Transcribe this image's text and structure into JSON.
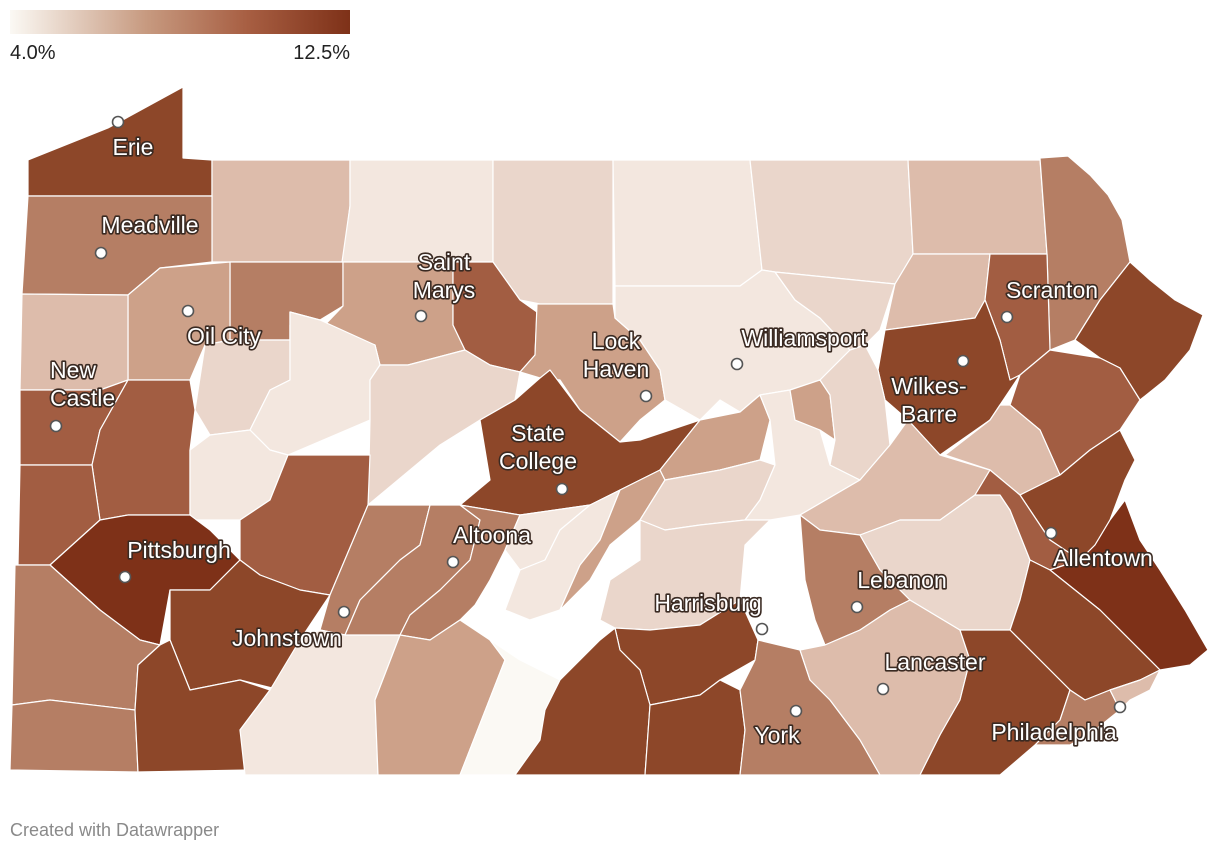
{
  "legend": {
    "min_label": "4.0%",
    "max_label": "12.5%",
    "gradient_colors": [
      "#fbf9f4",
      "#c79a80",
      "#a75e42",
      "#7e3118"
    ]
  },
  "credit": "Created with Datawrapper",
  "colors": {
    "c1": "#fbf9f4",
    "c2": "#f3e7df",
    "c3": "#ead6cb",
    "c4": "#ddbcab",
    "c5": "#cda189",
    "c6": "#b57e64",
    "c7": "#a25d42",
    "c8": "#8d4729",
    "c9": "#7e3118"
  },
  "cities": [
    {
      "name": "Erie",
      "lines": [
        "Erie"
      ]
    },
    {
      "name": "Meadville",
      "lines": [
        "Meadville"
      ]
    },
    {
      "name": "Oil City",
      "lines": [
        "Oil City"
      ]
    },
    {
      "name": "New Castle",
      "lines": [
        "New",
        "Castle"
      ]
    },
    {
      "name": "Pittsburgh",
      "lines": [
        "Pittsburgh"
      ]
    },
    {
      "name": "Johnstown",
      "lines": [
        "Johnstown"
      ]
    },
    {
      "name": "Altoona",
      "lines": [
        "Altoona"
      ]
    },
    {
      "name": "State College",
      "lines": [
        "State",
        "College"
      ]
    },
    {
      "name": "Saint Marys",
      "lines": [
        "Saint",
        "Marys"
      ]
    },
    {
      "name": "Lock Haven",
      "lines": [
        "Lock",
        "Haven"
      ]
    },
    {
      "name": "Williamsport",
      "lines": [
        "Williamsport"
      ]
    },
    {
      "name": "Wilkes-Barre",
      "lines": [
        "Wilkes-",
        "Barre"
      ]
    },
    {
      "name": "Scranton",
      "lines": [
        "Scranton"
      ]
    },
    {
      "name": "Allentown",
      "lines": [
        "Allentown"
      ]
    },
    {
      "name": "Harrisburg",
      "lines": [
        "Harrisburg"
      ]
    },
    {
      "name": "Lebanon",
      "lines": [
        "Lebanon"
      ]
    },
    {
      "name": "Lancaster",
      "lines": [
        "Lancaster"
      ]
    },
    {
      "name": "York",
      "lines": [
        "York"
      ]
    },
    {
      "name": "Philadelphia",
      "lines": [
        "Philadelphia"
      ]
    }
  ]
}
